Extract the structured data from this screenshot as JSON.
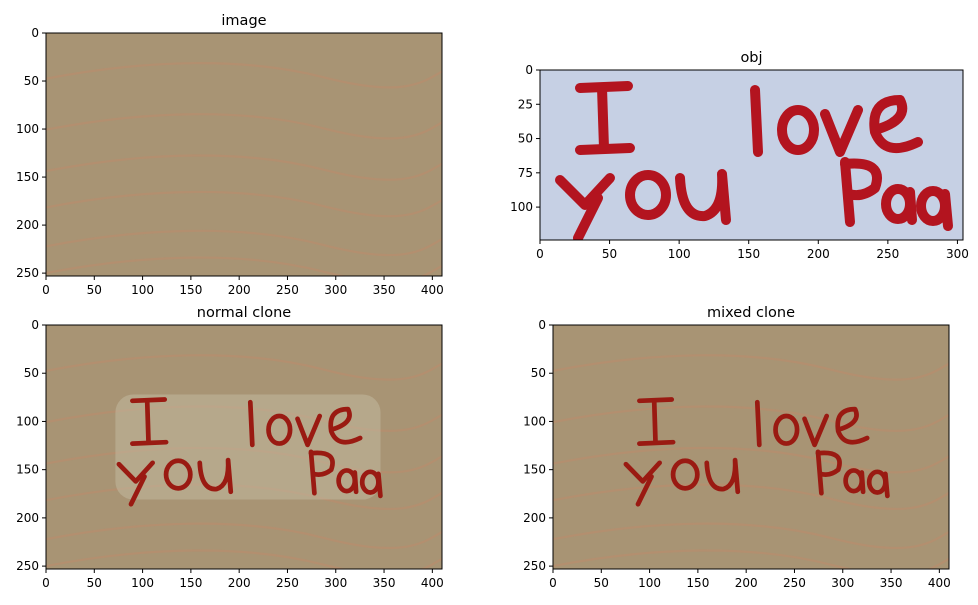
{
  "figure": {
    "panels": [
      {
        "title": "image",
        "content": "wood"
      },
      {
        "title": "obj",
        "content": "paper"
      },
      {
        "title": "normal clone",
        "content": "normal"
      },
      {
        "title": "mixed clone",
        "content": "mixed"
      }
    ],
    "handwriting": [
      "I love",
      "you Paa"
    ],
    "colors": {
      "wood": "#a89474",
      "grain": "#c08a6a",
      "paper": "#c6d0e4",
      "ink": "#b3141f",
      "ink_blended": "#9a1a12"
    }
  },
  "chart_data": [
    {
      "type": "image",
      "title": "image",
      "xlim": [
        0,
        410
      ],
      "ylim": [
        253,
        0
      ],
      "xticks": [
        0,
        50,
        100,
        150,
        200,
        250,
        300,
        350,
        400
      ],
      "yticks": [
        0,
        50,
        100,
        150,
        200,
        250
      ]
    },
    {
      "type": "image",
      "title": "obj",
      "xlim": [
        0,
        304
      ],
      "ylim": [
        124,
        0
      ],
      "xticks": [
        0,
        50,
        100,
        150,
        200,
        250,
        300
      ],
      "yticks": [
        0,
        25,
        50,
        75,
        100
      ]
    },
    {
      "type": "image",
      "title": "normal clone",
      "xlim": [
        0,
        410
      ],
      "ylim": [
        253,
        0
      ],
      "xticks": [
        0,
        50,
        100,
        150,
        200,
        250,
        300,
        350,
        400
      ],
      "yticks": [
        0,
        50,
        100,
        150,
        200,
        250
      ]
    },
    {
      "type": "image",
      "title": "mixed clone",
      "xlim": [
        0,
        410
      ],
      "ylim": [
        253,
        0
      ],
      "xticks": [
        0,
        50,
        100,
        150,
        200,
        250,
        300,
        350,
        400
      ],
      "yticks": [
        0,
        50,
        100,
        150,
        200,
        250
      ]
    }
  ]
}
